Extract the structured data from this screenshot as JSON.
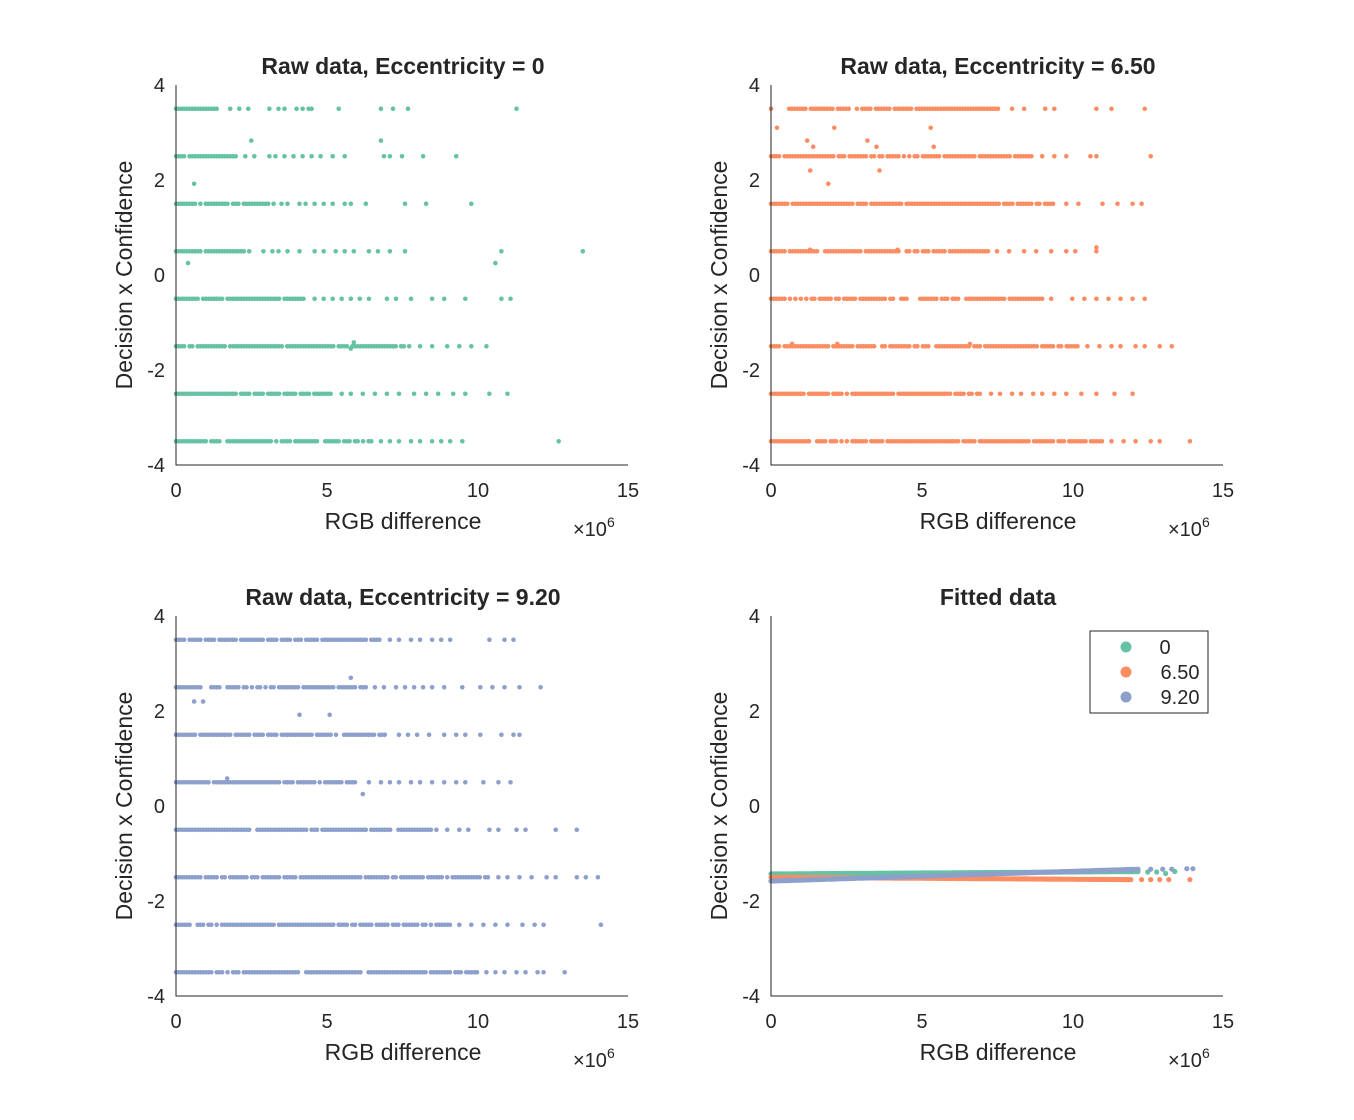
{
  "colors": {
    "ecc0": "#66c2a5",
    "ecc650": "#fc8d62",
    "ecc920": "#8da0cb",
    "axis": "#262626"
  },
  "chart_data": [
    {
      "type": "scatter",
      "title": "Raw data, Eccentricity = 0",
      "xlabel": "RGB difference",
      "ylabel": "Decision x Confidence",
      "x_exponent": "×10^6",
      "x_exponent_base": "×10",
      "x_exponent_power": "6",
      "xlim": [
        0,
        15
      ],
      "ylim": [
        -4,
        4
      ],
      "xticks": [
        "0",
        "5",
        "10",
        "15"
      ],
      "yticks": [
        "-4",
        "-2",
        "0",
        "2",
        "4"
      ],
      "grid": false,
      "series": [
        {
          "color": "#66c2a5",
          "rows": [
            {
              "y": 3.5,
              "dense": [
                0,
                1.4
              ],
              "scatter": [
                1.8,
                2.1,
                2.4,
                3.1,
                3.4,
                3.6,
                4.0,
                4.2,
                4.4,
                4.5,
                5.4,
                6.8,
                7.2,
                7.7,
                11.3
              ]
            },
            {
              "y": 2.5,
              "dense": [
                0,
                2.0
              ],
              "scatter": [
                2.3,
                2.6,
                3.1,
                3.3,
                3.6,
                3.9,
                4.2,
                4.5,
                4.8,
                5.2,
                5.6,
                6.9,
                7.1,
                7.5,
                8.2,
                9.3
              ]
            },
            {
              "y": 1.5,
              "dense": [
                0,
                3.3
              ],
              "scatter": [
                3.5,
                3.7,
                4.1,
                4.3,
                4.6,
                4.9,
                5.2,
                5.6,
                5.8,
                6.3,
                7.6,
                8.3,
                9.8
              ]
            },
            {
              "y": 0.5,
              "dense": [
                0,
                2.6
              ],
              "scatter": [
                2.9,
                3.2,
                3.4,
                3.7,
                4.1,
                4.6,
                4.9,
                5.3,
                5.6,
                5.9,
                6.4,
                6.7,
                7.1,
                7.6,
                10.8,
                13.5
              ]
            },
            {
              "y": -0.5,
              "dense": [
                0,
                4.3
              ],
              "scatter": [
                4.6,
                4.9,
                5.2,
                5.5,
                5.8,
                6.1,
                6.4,
                7.0,
                7.3,
                7.8,
                8.5,
                8.9,
                9.6,
                10.8,
                11.1
              ]
            },
            {
              "y": -1.5,
              "dense": [
                0,
                7.8
              ],
              "scatter": [
                8.1,
                8.5,
                9.0,
                9.4,
                9.8,
                10.3
              ]
            },
            {
              "y": -2.5,
              "dense": [
                0,
                5.2
              ],
              "scatter": [
                5.5,
                5.8,
                6.2,
                6.6,
                7.0,
                7.4,
                7.9,
                8.3,
                8.7,
                9.2,
                9.6,
                10.4,
                11.0
              ]
            },
            {
              "y": -3.5,
              "dense": [
                0,
                6.5
              ],
              "scatter": [
                6.8,
                7.1,
                7.4,
                7.8,
                8.1,
                8.5,
                8.8,
                9.1,
                9.5,
                12.7
              ]
            }
          ],
          "extra_points": [
            [
              2.5,
              2.83
            ],
            [
              6.8,
              2.83
            ],
            [
              0.6,
              1.92
            ],
            [
              0.4,
              0.25
            ],
            [
              10.6,
              0.25
            ],
            [
              5.9,
              -1.42
            ],
            [
              5.8,
              -1.55
            ]
          ]
        }
      ]
    },
    {
      "type": "scatter",
      "title": "Raw data, Eccentricity = 6.50",
      "xlabel": "RGB difference",
      "ylabel": "Decision x Confidence",
      "x_exponent": "×10^6",
      "x_exponent_base": "×10",
      "x_exponent_power": "6",
      "xlim": [
        0,
        15
      ],
      "ylim": [
        -4,
        4
      ],
      "xticks": [
        "0",
        "5",
        "10",
        "15"
      ],
      "yticks": [
        "-4",
        "-2",
        "0",
        "2",
        "4"
      ],
      "grid": false,
      "series": [
        {
          "color": "#fc8d62",
          "rows": [
            {
              "y": 3.5,
              "dense": [
                0.6,
                7.6
              ],
              "scatter": [
                0,
                8.0,
                8.4,
                9.1,
                9.4,
                10.8,
                11.3,
                12.4
              ]
            },
            {
              "y": 2.5,
              "dense": [
                0,
                8.7
              ],
              "scatter": [
                9.0,
                9.4,
                9.8,
                10.6,
                10.8,
                12.6
              ]
            },
            {
              "y": 1.5,
              "dense": [
                0,
                9.4
              ],
              "scatter": [
                9.8,
                10.2,
                11.0,
                11.5,
                12.0,
                12.3
              ]
            },
            {
              "y": 0.5,
              "dense": [
                0,
                7.2
              ],
              "scatter": [
                7.5,
                7.9,
                8.4,
                8.8,
                9.3,
                9.8,
                10.1,
                10.8
              ]
            },
            {
              "y": -0.5,
              "dense": [
                0,
                9.0
              ],
              "scatter": [
                9.3,
                10.0,
                10.4,
                10.8,
                11.2,
                11.6,
                12.0,
                12.4
              ]
            },
            {
              "y": -1.5,
              "dense": [
                0,
                10.2
              ],
              "scatter": [
                10.5,
                10.9,
                11.3,
                11.6,
                12.1,
                12.4,
                12.9,
                13.3
              ]
            },
            {
              "y": -2.5,
              "dense": [
                0,
                7.0
              ],
              "scatter": [
                7.3,
                7.6,
                8.0,
                8.3,
                8.7,
                9.0,
                9.4,
                9.8,
                10.3,
                10.8,
                11.4,
                12.0
              ]
            },
            {
              "y": -3.5,
              "dense": [
                0,
                11.0
              ],
              "scatter": [
                11.3,
                11.7,
                12.1,
                12.6,
                12.9,
                13.9
              ]
            }
          ],
          "extra_points": [
            [
              0.2,
              3.1
            ],
            [
              1.2,
              2.83
            ],
            [
              1.3,
              2.2
            ],
            [
              1.4,
              2.7
            ],
            [
              1.9,
              1.92
            ],
            [
              2.1,
              3.1
            ],
            [
              3.2,
              2.83
            ],
            [
              3.5,
              2.7
            ],
            [
              3.6,
              2.2
            ],
            [
              5.3,
              3.1
            ],
            [
              5.4,
              2.7
            ],
            [
              1.3,
              0.53
            ],
            [
              4.2,
              0.53
            ],
            [
              10.8,
              0.58
            ],
            [
              0.7,
              -1.45
            ],
            [
              2.2,
              -1.45
            ],
            [
              6.6,
              -1.45
            ]
          ]
        }
      ]
    },
    {
      "type": "scatter",
      "title": "Raw data, Eccentricity = 9.20",
      "xlabel": "RGB difference",
      "ylabel": "Decision x Confidence",
      "x_exponent": "×10^6",
      "x_exponent_base": "×10",
      "x_exponent_power": "6",
      "xlim": [
        0,
        15
      ],
      "ylim": [
        -4,
        4
      ],
      "xticks": [
        "0",
        "5",
        "10",
        "15"
      ],
      "yticks": [
        "-4",
        "-2",
        "0",
        "2",
        "4"
      ],
      "grid": false,
      "series": [
        {
          "color": "#8da0cb",
          "rows": [
            {
              "y": 3.5,
              "dense": [
                0,
                6.8
              ],
              "scatter": [
                7.1,
                7.4,
                7.8,
                8.1,
                8.5,
                8.8,
                9.1,
                10.4,
                10.9,
                11.2
              ]
            },
            {
              "y": 2.5,
              "dense": [
                0,
                6.3
              ],
              "scatter": [
                6.6,
                6.9,
                7.3,
                7.6,
                7.9,
                8.2,
                8.5,
                8.9,
                9.5,
                10.1,
                10.5,
                10.9,
                11.4,
                12.1
              ]
            },
            {
              "y": 1.5,
              "dense": [
                0,
                7.1
              ],
              "scatter": [
                7.4,
                7.7,
                8.0,
                8.4,
                8.9,
                9.3,
                9.6,
                10.1,
                10.8,
                11.2,
                11.4
              ]
            },
            {
              "y": 0.5,
              "dense": [
                0,
                6.1
              ],
              "scatter": [
                6.4,
                6.8,
                7.1,
                7.4,
                7.8,
                8.1,
                8.5,
                8.9,
                9.3,
                9.6,
                10.2,
                10.7,
                11.1
              ]
            },
            {
              "y": -0.5,
              "dense": [
                0,
                8.8
              ],
              "scatter": [
                9.0,
                9.4,
                9.7,
                10.4,
                10.7,
                11.3,
                11.6,
                12.6,
                13.3
              ]
            },
            {
              "y": -1.5,
              "dense": [
                0,
                10.4
              ],
              "scatter": [
                10.7,
                11.0,
                11.4,
                11.8,
                12.3,
                12.6,
                13.3,
                13.6,
                14.0
              ]
            },
            {
              "y": -2.5,
              "dense": [
                0,
                9.1
              ],
              "scatter": [
                9.4,
                9.8,
                10.2,
                10.6,
                11.0,
                11.5,
                11.9,
                12.2,
                14.1
              ]
            },
            {
              "y": -3.5,
              "dense": [
                0,
                10.0
              ],
              "scatter": [
                10.3,
                10.6,
                10.9,
                11.3,
                11.6,
                12.0,
                12.2,
                12.9
              ]
            }
          ],
          "extra_points": [
            [
              0.6,
              2.2
            ],
            [
              0.9,
              2.2
            ],
            [
              4.1,
              1.92
            ],
            [
              5.1,
              1.92
            ],
            [
              5.8,
              2.7
            ],
            [
              1.7,
              0.58
            ],
            [
              6.2,
              0.25
            ]
          ]
        }
      ]
    },
    {
      "type": "line",
      "title": "Fitted data",
      "xlabel": "RGB difference",
      "ylabel": "Decision x Confidence",
      "x_exponent": "×10^6",
      "x_exponent_base": "×10",
      "x_exponent_power": "6",
      "xlim": [
        0,
        15
      ],
      "ylim": [
        -4,
        4
      ],
      "xticks": [
        "0",
        "5",
        "10",
        "15"
      ],
      "yticks": [
        "-4",
        "-2",
        "0",
        "2",
        "4"
      ],
      "grid": false,
      "legend_position": "top-right",
      "series": [
        {
          "name": "0",
          "color": "#66c2a5",
          "x_range": [
            0,
            12.2
          ],
          "y_range": [
            -1.43,
            -1.38
          ],
          "tail_x": [
            12.5,
            12.8,
            13.1,
            13.4
          ],
          "tail_y": [
            -1.39,
            -1.39,
            -1.42,
            -1.38
          ]
        },
        {
          "name": "6.50",
          "color": "#fc8d62",
          "x_range": [
            0,
            12.0
          ],
          "y_range": [
            -1.5,
            -1.55
          ],
          "tail_x": [
            12.3,
            12.6,
            12.9,
            13.2,
            13.9
          ],
          "tail_y": [
            -1.55,
            -1.55,
            -1.55,
            -1.55,
            -1.55
          ]
        },
        {
          "name": "9.20",
          "color": "#8da0cb",
          "x_range": [
            0,
            12.2
          ],
          "y_range": [
            -1.58,
            -1.33
          ],
          "tail_x": [
            12.6,
            13.0,
            13.3,
            13.8,
            14.0
          ],
          "tail_y": [
            -1.33,
            -1.33,
            -1.33,
            -1.32,
            -1.32
          ]
        }
      ]
    }
  ]
}
